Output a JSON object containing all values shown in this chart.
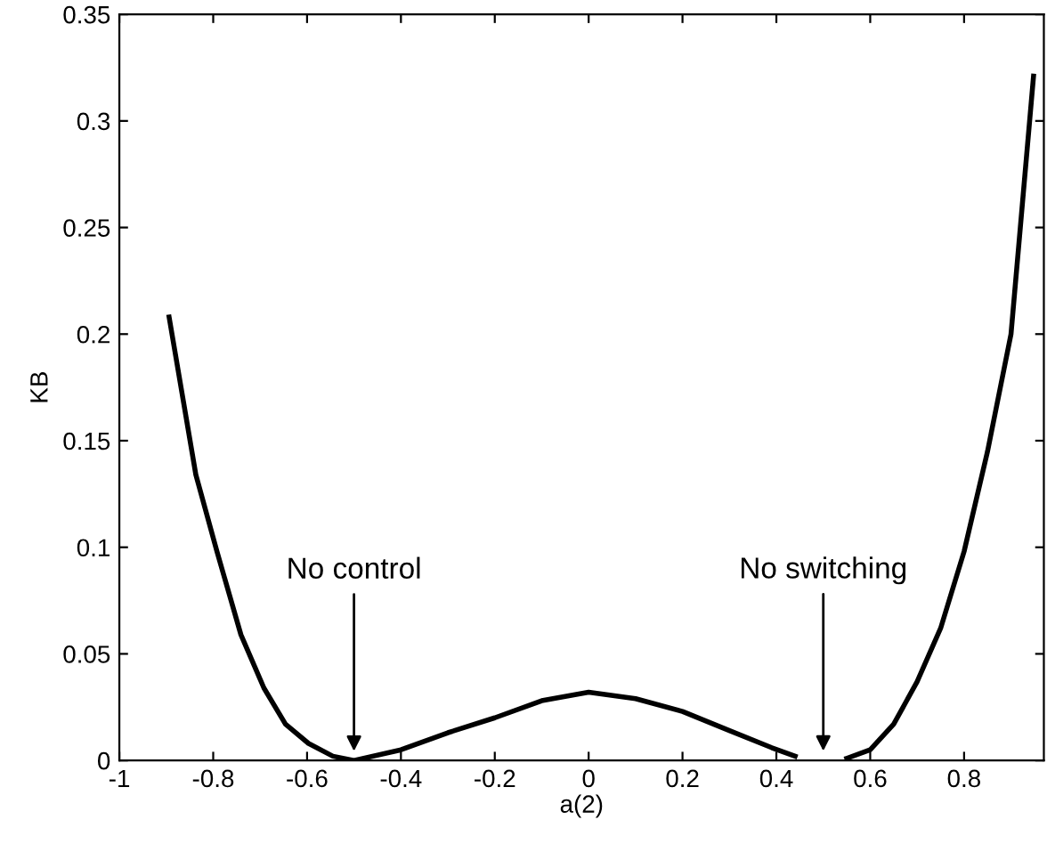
{
  "chart_data": {
    "type": "line",
    "xlabel": "a(2)",
    "ylabel": "KB",
    "x": [
      -0.894,
      -0.837,
      -0.792,
      -0.741,
      -0.692,
      -0.646,
      -0.597,
      -0.545,
      -0.5,
      -0.4,
      -0.3,
      -0.2,
      -0.1,
      0,
      0.1,
      0.2,
      0.3,
      0.39,
      0.44,
      0.5,
      0.55,
      0.6,
      0.65,
      0.7,
      0.75,
      0.8,
      0.85,
      0.9,
      0.948
    ],
    "series": [
      {
        "color": "#000000",
        "values": [
          0.208,
          0.134,
          0.098,
          0.059,
          0.034,
          0.017,
          0.008,
          0.002,
          0,
          0.005,
          0.013,
          0.02,
          0.028,
          0.032,
          0.029,
          0.023,
          0.014,
          0.006,
          0.002,
          null,
          0.001,
          0.005,
          0.017,
          0.037,
          0.062,
          0.098,
          0.145,
          0.2,
          0.321
        ]
      }
    ],
    "xlim": [
      -1,
      0.97
    ],
    "ylim": [
      0,
      0.35
    ],
    "xticks": [
      -1,
      -0.8,
      -0.6,
      -0.4,
      -0.2,
      0,
      0.2,
      0.4,
      0.6,
      0.8
    ],
    "yticks": [
      0,
      0.05,
      0.1,
      0.15,
      0.2,
      0.25,
      0.3,
      0.35
    ],
    "annotations": [
      {
        "text": "No control",
        "x": -0.5,
        "y": 0.002
      },
      "No switching"
    ],
    "grid": false,
    "legend": false,
    "marker": "none",
    "line_style": "solid"
  }
}
